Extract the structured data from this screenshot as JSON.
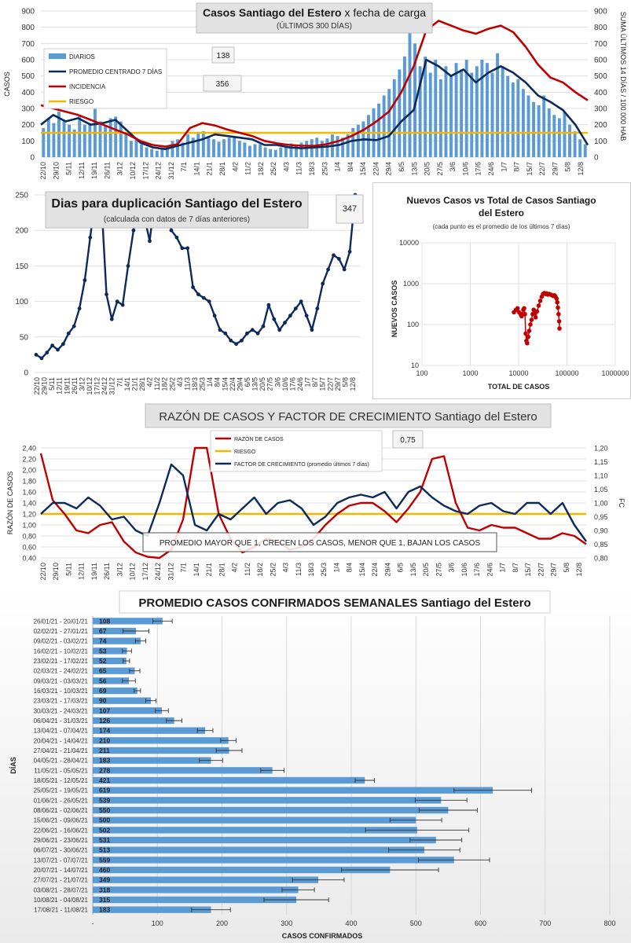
{
  "colors": {
    "bars": "#5b9bd5",
    "navy": "#0d2a5c",
    "red": "#c00000",
    "gold": "#f2b800",
    "grid": "#d9d9d9",
    "boxbg": "#e2e2e2"
  },
  "chart_data": [
    {
      "id": "cases",
      "type": "bar",
      "title": "Casos Santiago del Estero",
      "title_suffix": "x fecha de carga",
      "subtitle": "(ÚLTIMOS 300 DÍAS)",
      "ylabel": "CASOS",
      "y2label": "SUMA ÚLTIMOS 14 DÍAS / 100.000 HAB",
      "ylim": [
        0,
        900
      ],
      "y2lim": [
        0,
        900
      ],
      "yticks": [
        "0",
        "100",
        "200",
        "300",
        "400",
        "500",
        "600",
        "700",
        "800",
        "900"
      ],
      "x_ticks": [
        "22/10",
        "29/10",
        "5/11",
        "12/11",
        "19/11",
        "26/11",
        "3/12",
        "10/12",
        "17/12",
        "24/12",
        "31/12",
        "7/1",
        "14/1",
        "21/1",
        "28/1",
        "4/2",
        "11/2",
        "18/2",
        "25/2",
        "4/3",
        "11/3",
        "18/3",
        "25/3",
        "1/4",
        "8/4",
        "15/4",
        "22/4",
        "29/4",
        "6/5",
        "13/5",
        "20/5",
        "27/5",
        "3/6",
        "10/6",
        "17/6",
        "24/6",
        "1/7",
        "8/7",
        "15/7",
        "22/7",
        "29/7",
        "5/8",
        "12/8"
      ],
      "legend": [
        "DIARIOS",
        "PROMEDIO CENTRADO 7 DÍAS",
        "INCIDENCIA",
        "RIESGO"
      ],
      "callouts": [
        "138",
        "356"
      ],
      "riesgo": 150,
      "series": [
        {
          "name": "PROMEDIO CENTRADO 7 DÍAS",
          "values": [
            200,
            260,
            220,
            240,
            200,
            210,
            230,
            160,
            90,
            60,
            50,
            70,
            90,
            110,
            140,
            130,
            120,
            110,
            75,
            75,
            60,
            55,
            60,
            65,
            75,
            100,
            110,
            105,
            130,
            220,
            290,
            600,
            560,
            500,
            540,
            460,
            520,
            560,
            520,
            460,
            380,
            340,
            290,
            200,
            75
          ]
        },
        {
          "name": "INCIDENCIA",
          "values": [
            320,
            300,
            280,
            260,
            230,
            200,
            170,
            140,
            100,
            75,
            65,
            80,
            180,
            210,
            195,
            170,
            150,
            130,
            100,
            85,
            75,
            70,
            70,
            80,
            100,
            130,
            170,
            220,
            280,
            400,
            560,
            780,
            840,
            810,
            780,
            760,
            790,
            810,
            770,
            680,
            570,
            490,
            460,
            400,
            350
          ]
        }
      ],
      "bars_daily": [
        180,
        240,
        210,
        280,
        230,
        200,
        170,
        260,
        200,
        210,
        300,
        220,
        190,
        240,
        250,
        220,
        150,
        100,
        120,
        80,
        60,
        50,
        40,
        55,
        70,
        100,
        110,
        90,
        140,
        120,
        150,
        160,
        130,
        110,
        95,
        110,
        120,
        130,
        100,
        90,
        70,
        80,
        80,
        60,
        50,
        45,
        60,
        70,
        85,
        75,
        90,
        100,
        110,
        120,
        100,
        115,
        140,
        130,
        120,
        140,
        180,
        200,
        220,
        260,
        300,
        330,
        380,
        420,
        480,
        540,
        620,
        780,
        700,
        560,
        620,
        520,
        600,
        480,
        560,
        500,
        580,
        540,
        600,
        520,
        560,
        600,
        580,
        520,
        640,
        560,
        500,
        460,
        480,
        420,
        380,
        340,
        320,
        380,
        300,
        260,
        240,
        280,
        200,
        160,
        110,
        80
      ]
    },
    {
      "id": "doubling",
      "type": "line",
      "title": "Dias para duplicación Santiago del Estero",
      "subtitle": "(calculada con datos de 7 días anteriores)",
      "ylim": [
        0,
        250
      ],
      "yticks": [
        "0",
        "50",
        "100",
        "150",
        "200",
        "250"
      ],
      "callout": "347",
      "x_ticks": [
        "22/10",
        "29/10",
        "5/11",
        "12/11",
        "19/11",
        "26/11",
        "3/12",
        "10/12",
        "17/12",
        "24/12",
        "31/12",
        "7/1",
        "14/1",
        "21/1",
        "28/1",
        "4/2",
        "11/2",
        "18/2",
        "25/2",
        "4/3",
        "11/3",
        "18/3",
        "25/3",
        "1/4",
        "8/4",
        "15/4",
        "22/4",
        "29/4",
        "6/5",
        "13/5",
        "20/5",
        "27/5",
        "3/6",
        "10/6",
        "17/6",
        "24/6",
        "1/7",
        "8/7",
        "15/7",
        "22/7",
        "29/7",
        "5/8",
        "12/8"
      ],
      "series": [
        {
          "values": [
            25,
            20,
            28,
            38,
            32,
            40,
            55,
            65,
            90,
            130,
            190,
            250,
            250,
            110,
            75,
            100,
            95,
            150,
            200,
            250,
            220,
            185,
            250,
            250,
            250,
            200,
            190,
            175,
            175,
            120,
            110,
            105,
            100,
            80,
            60,
            55,
            45,
            40,
            45,
            55,
            60,
            55,
            65,
            95,
            75,
            60,
            70,
            80,
            90,
            100,
            80,
            60,
            90,
            125,
            145,
            165,
            160,
            145,
            170,
            250
          ]
        }
      ]
    },
    {
      "id": "scatter",
      "type": "scatter",
      "title": "Nuevos Casos vs Total de Casos Santiago del Estero",
      "subtitle": "(cada punto es el promedio de los últimos 7 días)",
      "xlabel": "TOTAL DE CASOS",
      "ylabel": "NUEVOS CASOS",
      "log_scale": true,
      "xlim": [
        100,
        1000000
      ],
      "ylim": [
        10,
        10000
      ],
      "xticks": [
        "100",
        "1000",
        "10000",
        "100000",
        "1000000"
      ],
      "yticks": [
        "10",
        "100",
        "1000",
        "10000"
      ],
      "points": [
        [
          8000,
          200
        ],
        [
          8800,
          230
        ],
        [
          9500,
          250
        ],
        [
          10200,
          200
        ],
        [
          11000,
          180
        ],
        [
          11500,
          160
        ],
        [
          12000,
          180
        ],
        [
          12500,
          230
        ],
        [
          13000,
          250
        ],
        [
          13500,
          180
        ],
        [
          14000,
          60
        ],
        [
          14500,
          40
        ],
        [
          15000,
          35
        ],
        [
          15800,
          50
        ],
        [
          16500,
          70
        ],
        [
          17500,
          100
        ],
        [
          18500,
          130
        ],
        [
          19500,
          180
        ],
        [
          20500,
          230
        ],
        [
          21500,
          200
        ],
        [
          22500,
          150
        ],
        [
          24000,
          210
        ],
        [
          26000,
          290
        ],
        [
          28000,
          380
        ],
        [
          30000,
          480
        ],
        [
          32000,
          560
        ],
        [
          34000,
          590
        ],
        [
          36000,
          560
        ],
        [
          38000,
          580
        ],
        [
          40000,
          540
        ],
        [
          43000,
          560
        ],
        [
          46000,
          540
        ],
        [
          49000,
          520
        ],
        [
          52000,
          500
        ],
        [
          55000,
          520
        ],
        [
          58000,
          480
        ],
        [
          61000,
          430
        ],
        [
          63000,
          350
        ],
        [
          65000,
          260
        ],
        [
          67000,
          180
        ],
        [
          69000,
          120
        ],
        [
          70000,
          80
        ]
      ]
    },
    {
      "id": "ratio",
      "type": "line",
      "title": "RAZÓN DE CASOS Y FACTOR DE CRECIMIENTO Santiago del Estero",
      "ylabel": "RAZÓN DE CASOS",
      "y2label": "FC",
      "ylim": [
        0.4,
        2.4
      ],
      "y2lim": [
        0.8,
        1.2
      ],
      "yticks": [
        "0,40",
        "0,60",
        "0,80",
        "1,00",
        "1,20",
        "1,40",
        "1,60",
        "1,80",
        "2,00",
        "2,20",
        "2,40"
      ],
      "y2ticks": [
        "0,80",
        "0,85",
        "0,90",
        "0,95",
        "1,00",
        "1,05",
        "1,10",
        "1,15",
        "1,20"
      ],
      "x_ticks": [
        "22/10",
        "29/10",
        "5/11",
        "12/11",
        "19/11",
        "26/11",
        "3/12",
        "10/12",
        "17/12",
        "24/12",
        "31/12",
        "7/1",
        "14/1",
        "21/1",
        "28/1",
        "4/2",
        "11/2",
        "18/2",
        "25/2",
        "4/3",
        "11/3",
        "18/3",
        "25/3",
        "1/4",
        "8/4",
        "15/4",
        "22/4",
        "29/4",
        "6/5",
        "13/5",
        "20/5",
        "27/5",
        "3/6",
        "10/6",
        "17/6",
        "24/6",
        "1/7",
        "8/7",
        "15/7",
        "22/7",
        "29/7",
        "5/8",
        "12/8"
      ],
      "legend": [
        "RAZÓN DE CASOS",
        "RIESGO",
        "FACTOR DE CRECIMIENTO (promedio últimos 7 días)"
      ],
      "callout": "0,75",
      "annotation": "PROMEDIO MAYOR QUE 1, CRECEN LOS CASOS, MENOR QUE 1, BAJAN LOS CASOS",
      "riesgo": 1.2,
      "series": [
        {
          "name": "RAZÓN DE CASOS",
          "values": [
            2.3,
            1.45,
            1.2,
            0.9,
            0.85,
            1.0,
            1.05,
            0.7,
            0.5,
            0.42,
            0.4,
            0.55,
            1.1,
            2.4,
            2.4,
            1.2,
            0.75,
            0.5,
            0.6,
            0.75,
            0.7,
            0.55,
            0.6,
            0.75,
            1.0,
            1.2,
            1.35,
            1.4,
            1.4,
            1.25,
            1.05,
            1.3,
            1.6,
            2.2,
            2.25,
            1.4,
            0.95,
            0.9,
            1.0,
            0.95,
            0.95,
            0.85,
            0.75,
            0.75,
            0.85,
            0.8,
            0.65
          ]
        },
        {
          "name": "FACTOR DE CRECIMIENTO (promedio últimos 7 días)",
          "values": [
            0.96,
            1.0,
            1.0,
            0.98,
            1.02,
            0.99,
            0.94,
            0.95,
            0.9,
            0.88,
            1.0,
            1.14,
            1.1,
            0.92,
            0.9,
            0.96,
            0.94,
            0.98,
            1.02,
            0.96,
            1.0,
            1.01,
            0.98,
            0.92,
            0.95,
            1.0,
            1.02,
            1.03,
            1.02,
            1.04,
            0.98,
            1.04,
            1.06,
            1.02,
            0.99,
            0.97,
            0.96,
            0.99,
            1.0,
            0.97,
            0.96,
            1.0,
            1.0,
            0.96,
            1.0,
            0.92,
            0.86
          ]
        }
      ]
    },
    {
      "id": "weekly",
      "type": "bar",
      "orientation": "horizontal",
      "title": "PROMEDIO CASOS CONFIRMADOS SEMANALES Santiago del Estero",
      "xlabel": "CASOS CONFIRMADOS",
      "ylabel": "DÍAS",
      "xlim": [
        0,
        800
      ],
      "xticks": [
        "-",
        "100",
        "200",
        "300",
        "400",
        "500",
        "600",
        "700",
        "800"
      ],
      "categories": [
        "26/01/21 - 20/01/21",
        "02/02/21 - 27/01/21",
        "09/02/21 - 03/02/21",
        "16/02/21 - 10/02/21",
        "23/02/21 - 17/02/21",
        "02/03/21 - 24/02/21",
        "09/03/21 - 03/03/21",
        "16/03/21 - 10/03/21",
        "23/03/21 - 17/03/21",
        "30/03/21 - 24/03/21",
        "06/04/21 - 31/03/21",
        "13/04/21 - 07/04/21",
        "20/04/21 - 14/04/21",
        "27/04/21 - 21/04/21",
        "04/05/21 - 28/04/21",
        "11/05/21 - 05/05/21",
        "18/05/21 - 12/05/21",
        "25/05/21 - 19/05/21",
        "01/06/21 - 26/05/21",
        "08/06/21 - 02/06/21",
        "15/06/21 - 09/06/21",
        "22/06/21 - 16/06/21",
        "29/06/21 - 23/06/21",
        "06/07/21 - 30/06/21",
        "13/07/21 - 07/07/21",
        "20/07/21 - 14/07/21",
        "27/07/21 - 21/07/21",
        "03/08/21 - 28/07/21",
        "10/08/21 - 04/08/21",
        "17/08/21 - 11/08/21"
      ],
      "values": [
        108,
        67,
        74,
        53,
        52,
        65,
        56,
        69,
        90,
        107,
        126,
        174,
        210,
        211,
        183,
        278,
        421,
        619,
        539,
        550,
        500,
        502,
        531,
        513,
        559,
        460,
        349,
        318,
        315,
        183
      ],
      "labels": [
        "108",
        "67",
        "74",
        "53",
        "52",
        "65",
        "56",
        "69",
        "90",
        "107",
        "126",
        "174",
        "210",
        "211",
        "183",
        "278",
        "421",
        "619",
        "539",
        "550",
        "500",
        "502",
        "531",
        "513",
        "559",
        "460",
        "349",
        "318",
        "315",
        "183"
      ],
      "errors": [
        15,
        20,
        8,
        7,
        5,
        8,
        10,
        5,
        8,
        10,
        12,
        12,
        12,
        20,
        18,
        18,
        15,
        60,
        40,
        45,
        40,
        80,
        40,
        55,
        55,
        75,
        40,
        25,
        50,
        30
      ]
    }
  ]
}
